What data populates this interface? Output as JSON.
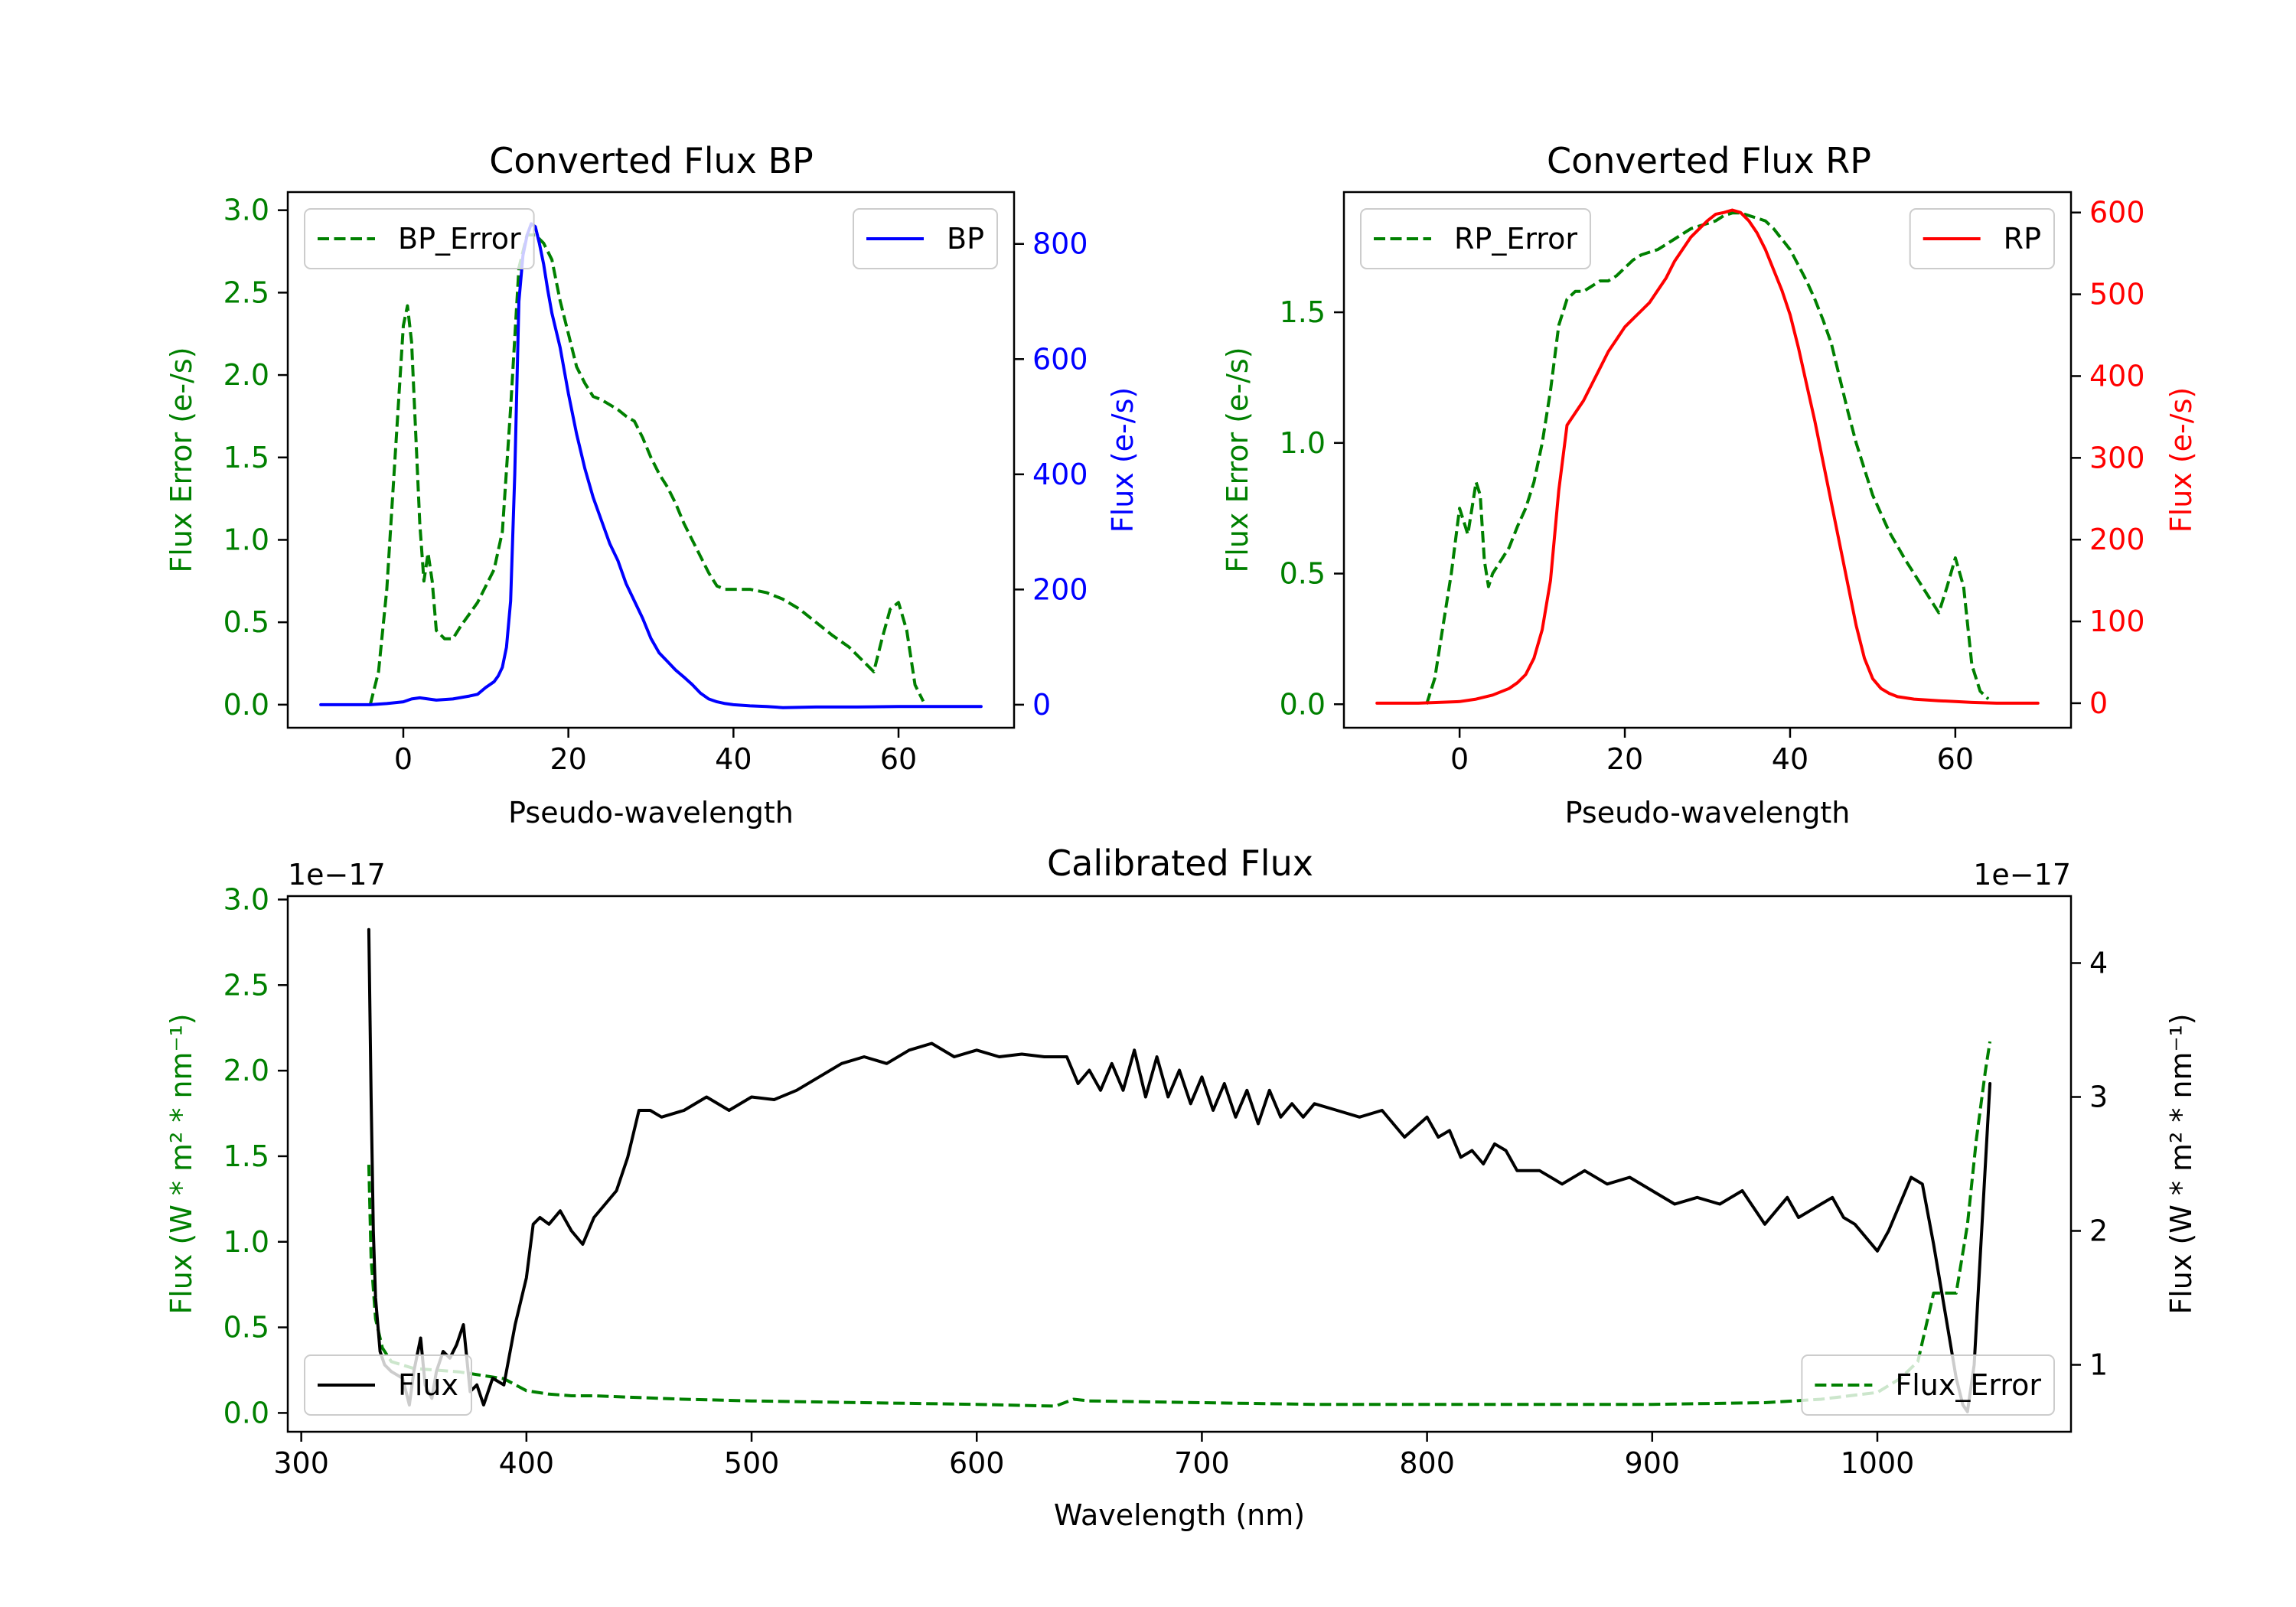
{
  "chart_data": [
    {
      "id": "bp",
      "type": "line",
      "title": "Converted Flux BP",
      "xlabel": "Pseudo-wavelength",
      "xlim": [
        -14,
        74
      ],
      "xticks": [
        0,
        20,
        40,
        60
      ],
      "left_axis": {
        "label": "Flux Error (e-/s)",
        "color": "#008000",
        "ylim": [
          -0.14,
          3.11
        ],
        "ticks": [
          0.0,
          0.5,
          1.0,
          1.5,
          2.0,
          2.5,
          3.0
        ],
        "tick_labels": [
          "0.0",
          "0.5",
          "1.0",
          "1.5",
          "2.0",
          "2.5",
          "3.0"
        ]
      },
      "right_axis": {
        "label": "Flux (e-/s)",
        "color": "#0000ff",
        "ylim": [
          -40,
          890
        ],
        "ticks": [
          0,
          200,
          400,
          600,
          800
        ],
        "tick_labels": [
          "0",
          "200",
          "400",
          "600",
          "800"
        ]
      },
      "series": [
        {
          "name": "BP_Error",
          "axis": "left",
          "color": "#008000",
          "dash": true,
          "x": [
            -4,
            -3,
            -2,
            -1,
            0,
            0.5,
            1,
            2,
            2.5,
            3,
            3.5,
            4,
            5,
            6,
            7,
            8,
            9,
            10,
            11,
            12,
            13,
            14,
            15,
            16,
            17,
            18,
            19,
            20,
            21,
            22,
            23,
            24,
            25,
            26,
            27,
            28,
            29,
            30,
            31,
            32,
            33,
            34,
            35,
            36,
            37,
            38,
            39,
            40,
            42,
            44,
            46,
            48,
            50,
            52,
            54,
            56,
            57,
            58,
            59,
            60,
            61,
            62,
            63
          ],
          "y": [
            0.0,
            0.2,
            0.7,
            1.5,
            2.3,
            2.42,
            2.2,
            1.1,
            0.75,
            0.92,
            0.75,
            0.45,
            0.4,
            0.4,
            0.48,
            0.55,
            0.62,
            0.72,
            0.82,
            1.05,
            1.8,
            2.65,
            2.85,
            2.85,
            2.8,
            2.7,
            2.45,
            2.25,
            2.05,
            1.95,
            1.87,
            1.85,
            1.82,
            1.79,
            1.75,
            1.72,
            1.62,
            1.5,
            1.4,
            1.32,
            1.22,
            1.1,
            1.0,
            0.9,
            0.8,
            0.72,
            0.7,
            0.7,
            0.7,
            0.68,
            0.64,
            0.58,
            0.5,
            0.42,
            0.35,
            0.25,
            0.2,
            0.4,
            0.58,
            0.62,
            0.45,
            0.12,
            0.02
          ]
        },
        {
          "name": "BP",
          "axis": "right",
          "color": "#0000ff",
          "dash": false,
          "x": [
            -10,
            -4,
            -2,
            0,
            1,
            2,
            4,
            6,
            8,
            9,
            10,
            11,
            11.5,
            12,
            12.5,
            13,
            13.5,
            14,
            14.5,
            15,
            15.5,
            16,
            16.5,
            17,
            17.5,
            18,
            19,
            20,
            21,
            22,
            23,
            24,
            25,
            26,
            27,
            28,
            29,
            30,
            31,
            32,
            33,
            34,
            35,
            36,
            37,
            38,
            39,
            40,
            42,
            44,
            46,
            50,
            55,
            60,
            65,
            70
          ],
          "y": [
            0,
            0,
            2,
            5,
            10,
            12,
            8,
            10,
            15,
            18,
            30,
            40,
            50,
            65,
            100,
            180,
            400,
            700,
            780,
            815,
            835,
            830,
            800,
            765,
            720,
            680,
            620,
            540,
            470,
            410,
            360,
            320,
            280,
            250,
            210,
            180,
            150,
            115,
            90,
            75,
            60,
            48,
            35,
            20,
            10,
            5,
            2,
            0,
            -2,
            -3,
            -5,
            -4,
            -4,
            -3,
            -3,
            -3
          ]
        }
      ],
      "legend": [
        {
          "label": "BP_Error",
          "position": "upper-left"
        },
        {
          "label": "BP",
          "position": "upper-right"
        }
      ]
    },
    {
      "id": "rp",
      "type": "line",
      "title": "Converted Flux RP",
      "xlabel": "Pseudo-wavelength",
      "xlim": [
        -14,
        74
      ],
      "xticks": [
        0,
        20,
        40,
        60
      ],
      "left_axis": {
        "label": "Flux Error (e-/s)",
        "color": "#008000",
        "ylim": [
          -0.09,
          1.96
        ],
        "ticks": [
          0.0,
          0.5,
          1.0,
          1.5
        ],
        "tick_labels": [
          "0.0",
          "0.5",
          "1.0",
          "1.5"
        ]
      },
      "right_axis": {
        "label": "Flux (e-/s)",
        "color": "#ff0000",
        "ylim": [
          -30,
          625
        ],
        "ticks": [
          0,
          100,
          200,
          300,
          400,
          500,
          600
        ],
        "tick_labels": [
          "0",
          "100",
          "200",
          "300",
          "400",
          "500",
          "600"
        ]
      },
      "series": [
        {
          "name": "RP_Error",
          "axis": "left",
          "color": "#008000",
          "dash": true,
          "x": [
            -4,
            -3,
            -2,
            -1,
            0,
            0.5,
            1,
            1.5,
            2,
            2.5,
            3,
            3.5,
            4,
            5,
            6,
            7,
            8,
            9,
            10,
            11,
            12,
            13,
            14,
            15,
            16,
            17,
            18,
            19,
            20,
            21,
            22,
            23,
            24,
            25,
            26,
            27,
            28,
            29,
            30,
            31,
            32,
            33,
            34,
            35,
            36,
            37,
            38,
            39,
            40,
            41,
            42,
            43,
            44,
            45,
            46,
            47,
            48,
            49,
            50,
            52,
            54,
            55,
            56,
            57,
            58,
            59,
            60,
            61,
            62,
            63,
            64
          ],
          "y": [
            0.0,
            0.1,
            0.3,
            0.5,
            0.75,
            0.7,
            0.65,
            0.75,
            0.85,
            0.8,
            0.55,
            0.45,
            0.5,
            0.55,
            0.6,
            0.68,
            0.75,
            0.85,
            1.0,
            1.2,
            1.45,
            1.55,
            1.58,
            1.58,
            1.6,
            1.62,
            1.62,
            1.64,
            1.67,
            1.7,
            1.72,
            1.73,
            1.74,
            1.76,
            1.78,
            1.8,
            1.82,
            1.83,
            1.84,
            1.85,
            1.87,
            1.88,
            1.88,
            1.87,
            1.86,
            1.85,
            1.82,
            1.78,
            1.74,
            1.68,
            1.62,
            1.55,
            1.47,
            1.38,
            1.25,
            1.12,
            1.0,
            0.9,
            0.8,
            0.66,
            0.55,
            0.5,
            0.45,
            0.4,
            0.35,
            0.45,
            0.56,
            0.45,
            0.15,
            0.05,
            0.02
          ]
        },
        {
          "name": "RP",
          "axis": "right",
          "color": "#ff0000",
          "dash": false,
          "x": [
            -10,
            -5,
            0,
            2,
            4,
            6,
            7,
            8,
            9,
            10,
            11,
            12,
            13,
            14,
            15,
            16,
            17,
            18,
            19,
            20,
            21,
            22,
            23,
            24,
            25,
            26,
            27,
            28,
            29,
            30,
            31,
            32,
            33,
            34,
            35,
            36,
            37,
            38,
            39,
            40,
            41,
            42,
            43,
            44,
            45,
            46,
            47,
            48,
            49,
            50,
            51,
            52,
            53,
            55,
            58,
            60,
            62,
            65,
            70
          ],
          "y": [
            0,
            0,
            2,
            5,
            10,
            18,
            25,
            35,
            55,
            90,
            150,
            260,
            340,
            355,
            370,
            390,
            410,
            430,
            445,
            460,
            470,
            480,
            490,
            505,
            520,
            540,
            555,
            570,
            580,
            590,
            598,
            600,
            603,
            600,
            590,
            575,
            555,
            530,
            505,
            475,
            435,
            390,
            345,
            295,
            245,
            195,
            145,
            95,
            55,
            30,
            18,
            12,
            8,
            5,
            3,
            2,
            1,
            0,
            0
          ]
        }
      ],
      "legend": [
        {
          "label": "RP_Error",
          "position": "upper-left"
        },
        {
          "label": "RP",
          "position": "upper-right"
        }
      ]
    },
    {
      "id": "cal",
      "type": "line",
      "title": "Calibrated Flux",
      "xlabel": "Wavelength (nm)",
      "xlim": [
        294,
        1086
      ],
      "xticks": [
        300,
        400,
        500,
        600,
        700,
        800,
        900,
        1000
      ],
      "left_axis": {
        "label": "Flux (W * m² * nm⁻¹)",
        "color": "#008000",
        "offset_text": "1e−17",
        "ylim": [
          -0.11,
          3.02
        ],
        "ticks": [
          0.0,
          0.5,
          1.0,
          1.5,
          2.0,
          2.5,
          3.0
        ],
        "tick_labels": [
          "0.0",
          "0.5",
          "1.0",
          "1.5",
          "2.0",
          "2.5",
          "3.0"
        ]
      },
      "right_axis": {
        "label": "Flux (W * m² * nm⁻¹)",
        "color": "#000000",
        "offset_text": "1e−17",
        "ylim": [
          0.5,
          4.5
        ],
        "ticks": [
          1,
          2,
          3,
          4
        ],
        "tick_labels": [
          "1",
          "2",
          "3",
          "4"
        ]
      },
      "series": [
        {
          "name": "Flux_Error",
          "axis": "left",
          "color": "#008000",
          "dash": true,
          "x": [
            330,
            331,
            333,
            336,
            340,
            345,
            350,
            360,
            370,
            380,
            390,
            400,
            410,
            420,
            430,
            450,
            470,
            500,
            550,
            600,
            635,
            643,
            650,
            700,
            750,
            800,
            850,
            900,
            950,
            975,
            1000,
            1010,
            1018,
            1025,
            1030,
            1035,
            1040,
            1044,
            1048,
            1050
          ],
          "y": [
            1.45,
            0.9,
            0.55,
            0.38,
            0.3,
            0.28,
            0.26,
            0.25,
            0.24,
            0.22,
            0.2,
            0.13,
            0.11,
            0.1,
            0.1,
            0.09,
            0.08,
            0.07,
            0.06,
            0.05,
            0.04,
            0.08,
            0.07,
            0.06,
            0.05,
            0.05,
            0.05,
            0.05,
            0.06,
            0.08,
            0.12,
            0.2,
            0.3,
            0.7,
            0.7,
            0.7,
            1.1,
            1.6,
            2.0,
            2.17
          ]
        },
        {
          "name": "Flux",
          "axis": "right",
          "color": "#000000",
          "dash": false,
          "x": [
            330,
            331,
            332,
            333,
            335,
            337,
            340,
            345,
            348,
            350,
            353,
            355,
            358,
            360,
            363,
            366,
            369,
            372,
            375,
            378,
            381,
            385,
            390,
            395,
            400,
            403,
            406,
            410,
            415,
            420,
            425,
            430,
            435,
            440,
            445,
            450,
            455,
            460,
            470,
            480,
            490,
            500,
            510,
            520,
            530,
            540,
            550,
            560,
            570,
            580,
            590,
            600,
            610,
            620,
            630,
            640,
            645,
            650,
            655,
            660,
            665,
            670,
            675,
            680,
            685,
            690,
            695,
            700,
            705,
            710,
            715,
            720,
            725,
            730,
            735,
            740,
            745,
            750,
            760,
            770,
            780,
            790,
            800,
            805,
            810,
            815,
            820,
            825,
            830,
            835,
            840,
            850,
            860,
            870,
            880,
            890,
            900,
            910,
            920,
            930,
            940,
            950,
            960,
            965,
            970,
            975,
            980,
            985,
            990,
            1000,
            1005,
            1010,
            1015,
            1020,
            1025,
            1030,
            1035,
            1038,
            1040,
            1043,
            1046,
            1050
          ],
          "y": [
            4.25,
            3.0,
            2.0,
            1.5,
            1.1,
            1.0,
            0.95,
            0.9,
            0.7,
            0.95,
            1.2,
            0.85,
            0.75,
            0.95,
            1.1,
            1.05,
            1.15,
            1.3,
            0.8,
            0.85,
            0.7,
            0.9,
            0.85,
            1.3,
            1.65,
            2.05,
            2.1,
            2.05,
            2.15,
            2.0,
            1.9,
            2.1,
            2.2,
            2.3,
            2.55,
            2.9,
            2.9,
            2.85,
            2.9,
            3.0,
            2.9,
            3.0,
            2.98,
            3.05,
            3.15,
            3.25,
            3.3,
            3.25,
            3.35,
            3.4,
            3.3,
            3.35,
            3.3,
            3.32,
            3.3,
            3.3,
            3.1,
            3.2,
            3.05,
            3.25,
            3.05,
            3.35,
            3.0,
            3.3,
            3.0,
            3.2,
            2.95,
            3.15,
            2.9,
            3.1,
            2.85,
            3.05,
            2.8,
            3.05,
            2.85,
            2.95,
            2.85,
            2.95,
            2.9,
            2.85,
            2.9,
            2.7,
            2.85,
            2.7,
            2.75,
            2.55,
            2.6,
            2.5,
            2.65,
            2.6,
            2.45,
            2.45,
            2.35,
            2.45,
            2.35,
            2.4,
            2.3,
            2.2,
            2.25,
            2.2,
            2.3,
            2.05,
            2.25,
            2.1,
            2.15,
            2.2,
            2.25,
            2.1,
            2.05,
            1.85,
            2.0,
            2.2,
            2.4,
            2.35,
            1.9,
            1.4,
            0.9,
            0.7,
            0.65,
            1.0,
            1.9,
            3.1
          ]
        }
      ],
      "legend": [
        {
          "label": "Flux",
          "position": "lower-left"
        },
        {
          "label": "Flux_Error",
          "position": "lower-right"
        }
      ]
    }
  ]
}
